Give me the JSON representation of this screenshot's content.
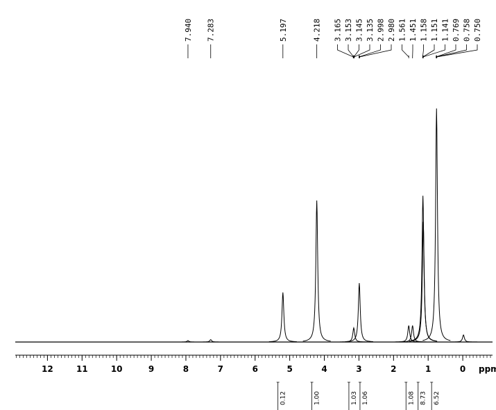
{
  "chart_data": {
    "type": "spectrum",
    "xlabel": "ppm",
    "xlim": [
      12.93,
      -0.86
    ],
    "ylim": [
      0,
      100
    ],
    "xticks": [
      12,
      11,
      10,
      9,
      8,
      7,
      6,
      5,
      4,
      3,
      2,
      1,
      0
    ],
    "color": "#000000",
    "peaks": {
      "ppm": [
        7.94,
        7.283,
        5.197,
        4.218,
        3.15,
        2.99,
        1.561,
        1.451,
        1.151,
        1.141,
        0.758,
        -0.02
      ],
      "height": [
        0.6,
        1,
        21,
        60,
        6,
        25,
        7,
        7,
        62,
        51,
        99,
        3
      ]
    },
    "peak_labels": [
      {
        "value": 7.94,
        "label": "7.940"
      },
      {
        "value": 7.283,
        "label": "7.283"
      },
      {
        "value": 5.197,
        "label": "5.197"
      },
      {
        "value": 4.218,
        "label": "4.218"
      },
      {
        "value": 3.165,
        "label": "3.165"
      },
      {
        "value": 3.153,
        "label": "3.153"
      },
      {
        "value": 3.145,
        "label": "3.145"
      },
      {
        "value": 3.135,
        "label": "3.135"
      },
      {
        "value": 2.998,
        "label": "2.998"
      },
      {
        "value": 2.98,
        "label": "2.980"
      },
      {
        "value": 1.561,
        "label": "1.561"
      },
      {
        "value": 1.451,
        "label": "1.451"
      },
      {
        "value": 1.158,
        "label": "1.158"
      },
      {
        "value": 1.151,
        "label": "1.151"
      },
      {
        "value": 1.141,
        "label": "1.141"
      },
      {
        "value": 0.769,
        "label": "0.769"
      },
      {
        "value": 0.758,
        "label": "0.758"
      },
      {
        "value": 0.75,
        "label": "0.750"
      }
    ],
    "integrals": {
      "ppm": [
        5.2,
        4.22,
        3.15,
        2.99,
        1.5,
        1.15,
        0.76
      ],
      "values": [
        0.12,
        1,
        1.03,
        1.06,
        1.08,
        8.73,
        6.52
      ],
      "value_labels": [
        "0.12",
        "1.00",
        "1.03",
        "1.06",
        "1.08",
        "8.73",
        "6.52"
      ]
    }
  }
}
